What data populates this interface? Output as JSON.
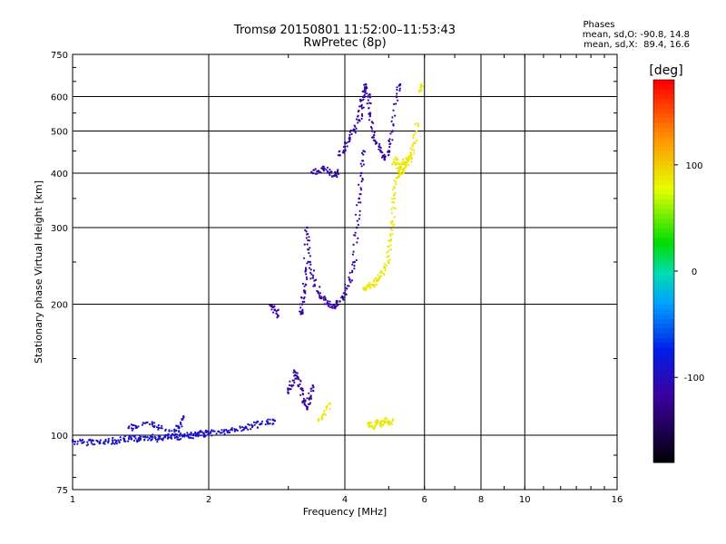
{
  "chart_data": {
    "type": "scatter",
    "title": "Tromsø 20150801 11:52:00–11:53:43",
    "subtitle": "RwPretec (8p)",
    "xlabel": "Frequency [MHz]",
    "ylabel": "Stationary phase Virtual Height [km]",
    "x_scale": "log",
    "y_scale": "log",
    "xlim": [
      1,
      16
    ],
    "ylim": [
      75,
      750
    ],
    "x_ticks": [
      "1",
      "2",
      "4",
      "6",
      "8",
      "10",
      "16"
    ],
    "y_ticks": [
      "75",
      "100",
      "200",
      "300",
      "400",
      "500",
      "600",
      "750"
    ],
    "x_gridlines": [
      2,
      4,
      6,
      8,
      10
    ],
    "y_gridlines": [
      100,
      200,
      300,
      400,
      500,
      600
    ],
    "grid": true,
    "phase_legend": {
      "title": "Phases",
      "o_line": "mean, sd,O: -90.8, 14.8",
      "x_line": "mean, sd,X:  89.4, 16.6"
    },
    "colorbar": {
      "label": "[deg]",
      "range": [
        -180,
        180
      ],
      "ticks": [
        "100",
        "0",
        "-100"
      ],
      "tick_values": [
        100,
        0,
        -100
      ]
    },
    "series": [
      {
        "phase": -90,
        "segments": [
          {
            "x": [
              1.0,
              1.05,
              1.1,
              1.15,
              1.2,
              1.25,
              1.3,
              1.35,
              1.4,
              1.45,
              1.5,
              1.55,
              1.6,
              1.65,
              1.7,
              1.75,
              1.8,
              1.85,
              1.9,
              1.95,
              2.0,
              2.1,
              2.2,
              2.3,
              2.4,
              2.5,
              2.6,
              2.7,
              2.8
            ],
            "y": [
              97,
              96,
              97,
              96,
              97,
              97,
              98,
              98,
              98,
              99,
              99,
              98,
              99,
              99,
              99,
              100,
              100,
              100,
              100,
              101,
              101,
              102,
              102,
              103,
              104,
              105,
              106,
              107,
              108
            ]
          },
          {
            "x": [
              1.33,
              1.38,
              1.5,
              1.55,
              1.68,
              1.72,
              1.76
            ],
            "y": [
              104,
              105,
              106,
              104,
              103,
              104,
              110
            ]
          }
        ]
      },
      {
        "phase": -110,
        "segments": [
          {
            "x": [
              2.75,
              2.8,
              2.85
            ],
            "y": [
              198,
              194,
              188
            ]
          },
          {
            "x": [
              3.2,
              3.22,
              3.25,
              3.28,
              3.3,
              3.35,
              3.4,
              3.5,
              3.6,
              3.7,
              3.8,
              3.9,
              4.0,
              4.1,
              4.2,
              4.25,
              4.3,
              4.35,
              4.4
            ],
            "y": [
              190,
              200,
              215,
              240,
              300,
              250,
              230,
              212,
              205,
              200,
              198,
              203,
              212,
              228,
              250,
              300,
              350,
              400,
              450
            ]
          },
          {
            "x": [
              3.4,
              3.5,
              3.6,
              3.7,
              3.8,
              3.85
            ],
            "y": [
              400,
              405,
              410,
              400,
              395,
              402
            ]
          },
          {
            "x": [
              3.9,
              4.0,
              4.1,
              4.2,
              4.3,
              4.35,
              4.4,
              4.45,
              4.5,
              4.55,
              4.6,
              4.7,
              4.8,
              4.9,
              5.0,
              5.1,
              5.2,
              5.3
            ],
            "y": [
              440,
              460,
              480,
              500,
              530,
              570,
              600,
              640,
              600,
              550,
              500,
              470,
              450,
              430,
              450,
              500,
              600,
              640
            ]
          },
          {
            "x": [
              3.0,
              3.05,
              3.1,
              3.15,
              3.2,
              3.25,
              3.3,
              3.35,
              3.4
            ],
            "y": [
              125,
              130,
              140,
              135,
              128,
              120,
              115,
              122,
              130
            ]
          }
        ]
      },
      {
        "phase": 90,
        "segments": [
          {
            "x": [
              4.4,
              4.5,
              4.6,
              4.7,
              4.8,
              4.9,
              5.0,
              5.05,
              5.1,
              5.15,
              5.2,
              5.3,
              5.4,
              5.5,
              5.6,
              5.7,
              5.8
            ],
            "y": [
              218,
              220,
              222,
              226,
              232,
              242,
              258,
              280,
              310,
              350,
              390,
              410,
              420,
              430,
              440,
              470,
              520
            ]
          },
          {
            "x": [
              5.1,
              5.2,
              5.3,
              5.4,
              5.5,
              5.6
            ],
            "y": [
              420,
              430,
              400,
              410,
              425,
              435
            ]
          },
          {
            "x": [
              4.5,
              4.6,
              4.7,
              4.8,
              4.9,
              5.0,
              5.1
            ],
            "y": [
              106,
              105,
              107,
              106,
              108,
              107,
              108
            ]
          },
          {
            "x": [
              5.9,
              5.9
            ],
            "y": [
              620,
              640
            ]
          },
          {
            "x": [
              3.5,
              3.6,
              3.7
            ],
            "y": [
              108,
              112,
              118
            ]
          }
        ]
      }
    ]
  }
}
